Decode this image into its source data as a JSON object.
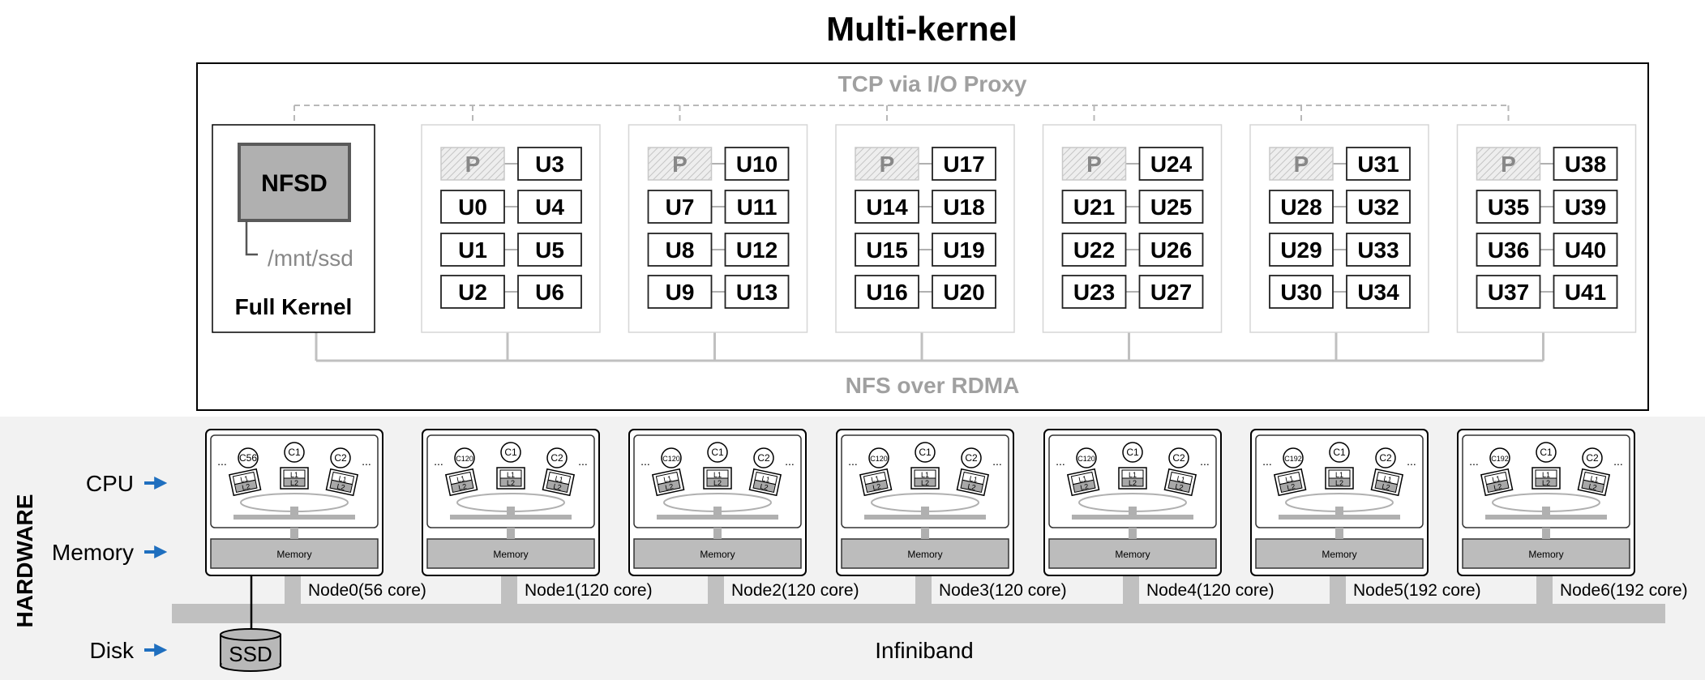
{
  "title": "Multi-kernel",
  "labels": {
    "tcp": "TCP via I/O Proxy",
    "nfs": "NFS over RDMA",
    "hardware": "HARDWARE",
    "cpu": "CPU",
    "memory": "Memory",
    "disk": "Disk",
    "infiniband": "Infiniband",
    "ssd": "SSD"
  },
  "full_kernel": {
    "label": "Full Kernel",
    "nfsd": "NFSD",
    "mount": "/mnt/ssd"
  },
  "proxy_label": "P",
  "groups": [
    {
      "cells": [
        "U3",
        "U0",
        "U4",
        "U1",
        "U5",
        "U2",
        "U6"
      ]
    },
    {
      "cells": [
        "U10",
        "U7",
        "U11",
        "U8",
        "U12",
        "U9",
        "U13"
      ]
    },
    {
      "cells": [
        "U17",
        "U14",
        "U18",
        "U15",
        "U19",
        "U16",
        "U20"
      ]
    },
    {
      "cells": [
        "U24",
        "U21",
        "U25",
        "U22",
        "U26",
        "U23",
        "U27"
      ]
    },
    {
      "cells": [
        "U31",
        "U28",
        "U32",
        "U29",
        "U33",
        "U30",
        "U34"
      ]
    },
    {
      "cells": [
        "U38",
        "U35",
        "U39",
        "U36",
        "U40",
        "U37",
        "U41"
      ]
    }
  ],
  "nodes": [
    {
      "label": "Node0(56 core)",
      "cores": [
        "C56",
        "C1",
        "C2"
      ]
    },
    {
      "label": "Node1(120 core)",
      "cores": [
        "C120",
        "C1",
        "C2"
      ]
    },
    {
      "label": "Node2(120 core)",
      "cores": [
        "C120",
        "C1",
        "C2"
      ]
    },
    {
      "label": "Node3(120 core)",
      "cores": [
        "C120",
        "C1",
        "C2"
      ]
    },
    {
      "label": "Node4(120 core)",
      "cores": [
        "C120",
        "C1",
        "C2"
      ]
    },
    {
      "label": "Node5(192 core)",
      "cores": [
        "C192",
        "C1",
        "C2"
      ]
    },
    {
      "label": "Node6(192 core)",
      "cores": [
        "C192",
        "C1",
        "C2"
      ]
    }
  ],
  "node_memory_label": "Memory",
  "cache_labels": [
    "L1",
    "L2"
  ],
  "ellipsis": "..."
}
